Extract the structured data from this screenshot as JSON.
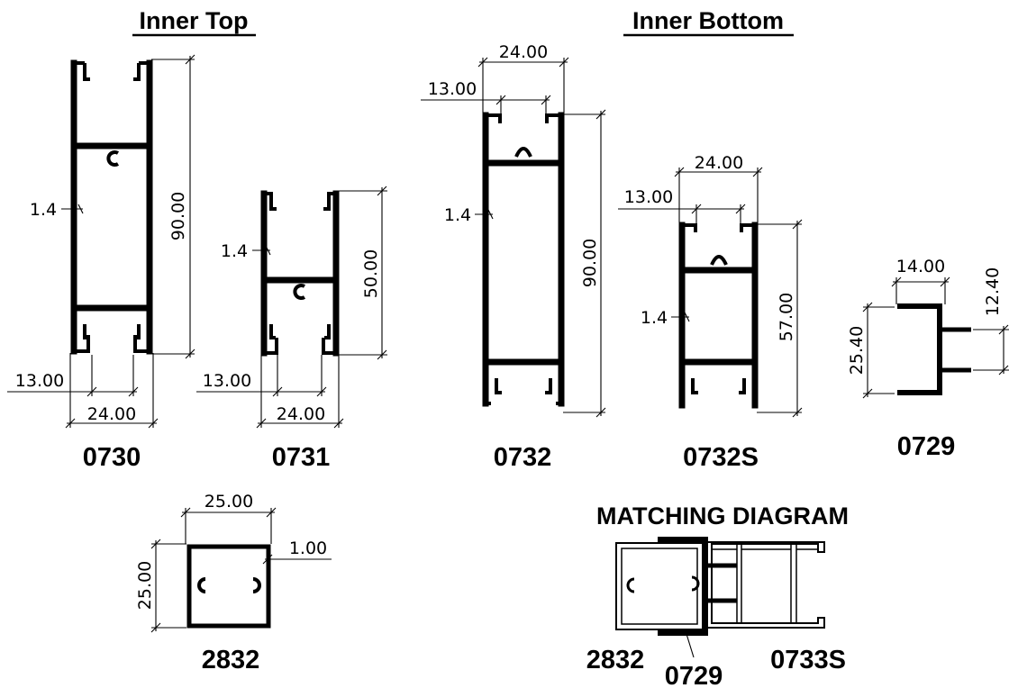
{
  "headers": {
    "inner_top": "Inner Top",
    "inner_bottom": "Inner Bottom",
    "matching": "MATCHING DIAGRAM"
  },
  "profiles": {
    "p0730": {
      "code": "0730",
      "width": "24.00",
      "height": "90.00",
      "slot": "13.00",
      "wall": "1.4"
    },
    "p0731": {
      "code": "0731",
      "width": "24.00",
      "height": "50.00",
      "slot": "13.00",
      "wall": "1.4"
    },
    "p0732": {
      "code": "0732",
      "width": "24.00",
      "height": "90.00",
      "slot": "13.00",
      "wall": "1.4"
    },
    "p0732s": {
      "code": "0732S",
      "width": "24.00",
      "height": "57.00",
      "slot": "13.00",
      "wall": "1.4"
    },
    "p0729": {
      "code": "0729",
      "width": "14.00",
      "height": "25.40",
      "tab": "12.40"
    },
    "p2832": {
      "code": "2832",
      "width": "25.00",
      "height": "25.00",
      "wall": "1.00"
    }
  },
  "matching_labels": {
    "left": "2832",
    "middle": "0729",
    "right": "0733S"
  }
}
